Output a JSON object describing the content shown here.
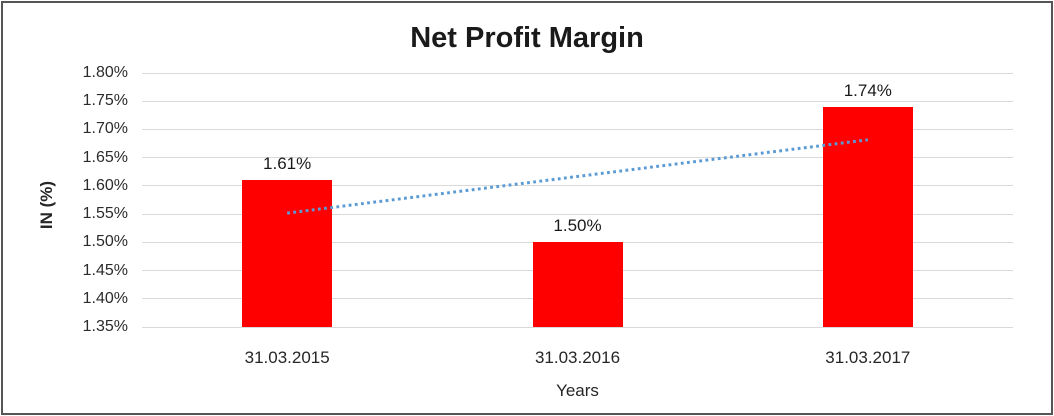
{
  "chart_data": {
    "type": "bar",
    "title": "Net Profit Margin",
    "xlabel": "Years",
    "ylabel": "IN (%)",
    "categories": [
      "31.03.2015",
      "31.03.2016",
      "31.03.2017"
    ],
    "values": [
      1.61,
      1.5,
      1.74
    ],
    "data_labels": [
      "1.61%",
      "1.50%",
      "1.74%"
    ],
    "ylim": [
      1.35,
      1.8
    ],
    "ytick_step": 0.05,
    "ytick_labels": [
      "1.80%",
      "1.75%",
      "1.70%",
      "1.65%",
      "1.60%",
      "1.55%",
      "1.50%",
      "1.45%",
      "1.40%",
      "1.35%"
    ],
    "grid": true,
    "legend": "none",
    "bar_color": "#ff0000",
    "gridline_color": "#d9d9d9",
    "trendline": {
      "style": "dotted",
      "color": "#5b9bd5",
      "start_value": 1.5517,
      "end_value": 1.6817
    }
  }
}
